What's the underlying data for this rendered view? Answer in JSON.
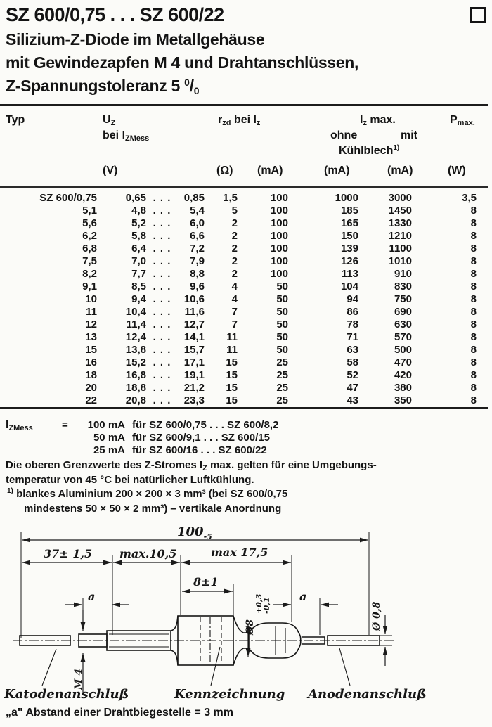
{
  "page": {
    "title": "SZ 600/0,75 . . . SZ 600/22",
    "subtitle_line1": "Silizium-Z-Diode im Metallgehäuse",
    "subtitle_line2": "mit Gewindezapfen M 4 und Drahtanschlüssen,",
    "subtitle_line3_pre": "Z-Spannungstoleranz 5 ",
    "pct_sup": "0",
    "pct_slash": "/",
    "pct_sub": "0"
  },
  "table": {
    "header": {
      "typ": "Typ",
      "uz_base": "U",
      "uz_sub": "Z",
      "uz_bei": "bei I",
      "uz_bei_sub": "ZMess",
      "rzd_base": "r",
      "rzd_sub": "zd",
      "rzd_bei": " bei I",
      "rzd_bei_sub": "z",
      "izmax_base": "I",
      "izmax_sub": "z",
      "izmax_rest": " max.",
      "ohne": "ohne",
      "mit": "mit",
      "kuehlblech": "Kühlblech",
      "kuehlblech_sup": "1)",
      "pmax_base": "P",
      "pmax_sub": "max.",
      "unit_v": "(V)",
      "unit_ohm": "(Ω)",
      "unit_ma1": "(mA)",
      "unit_ma2": "(mA)",
      "unit_ma3": "(mA)",
      "unit_w": "(W)"
    },
    "rows": [
      {
        "typ": "SZ 600/0,75",
        "min": "0,65",
        "dots": ". . .",
        "max": "0,85",
        "rzd": "1,5",
        "iz": "100",
        "ohne": "1000",
        "mit": "3000",
        "p": "3,5"
      },
      {
        "typ": "5,1",
        "min": "4,8",
        "dots": ". . .",
        "max": "5,4",
        "rzd": "5",
        "iz": "100",
        "ohne": "185",
        "mit": "1450",
        "p": "8"
      },
      {
        "typ": "5,6",
        "min": "5,2",
        "dots": ". . .",
        "max": "6,0",
        "rzd": "2",
        "iz": "100",
        "ohne": "165",
        "mit": "1330",
        "p": "8"
      },
      {
        "typ": "6,2",
        "min": "5,8",
        "dots": ". . .",
        "max": "6,6",
        "rzd": "2",
        "iz": "100",
        "ohne": "150",
        "mit": "1210",
        "p": "8"
      },
      {
        "typ": "6,8",
        "min": "6,4",
        "dots": ". . .",
        "max": "7,2",
        "rzd": "2",
        "iz": "100",
        "ohne": "139",
        "mit": "1100",
        "p": "8"
      },
      {
        "typ": "7,5",
        "min": "7,0",
        "dots": ". . .",
        "max": "7,9",
        "rzd": "2",
        "iz": "100",
        "ohne": "126",
        "mit": "1010",
        "p": "8"
      },
      {
        "typ": "8,2",
        "min": "7,7",
        "dots": ". . .",
        "max": "8,8",
        "rzd": "2",
        "iz": "100",
        "ohne": "113",
        "mit": "910",
        "p": "8"
      },
      {
        "typ": "9,1",
        "min": "8,5",
        "dots": ". . .",
        "max": "9,6",
        "rzd": "4",
        "iz": "50",
        "ohne": "104",
        "mit": "830",
        "p": "8"
      },
      {
        "typ": "10",
        "min": "9,4",
        "dots": ". . .",
        "max": "10,6",
        "rzd": "4",
        "iz": "50",
        "ohne": "94",
        "mit": "750",
        "p": "8"
      },
      {
        "typ": "11",
        "min": "10,4",
        "dots": ". . .",
        "max": "11,6",
        "rzd": "7",
        "iz": "50",
        "ohne": "86",
        "mit": "690",
        "p": "8"
      },
      {
        "typ": "12",
        "min": "11,4",
        "dots": ". . .",
        "max": "12,7",
        "rzd": "7",
        "iz": "50",
        "ohne": "78",
        "mit": "630",
        "p": "8"
      },
      {
        "typ": "13",
        "min": "12,4",
        "dots": ". . .",
        "max": "14,1",
        "rzd": "11",
        "iz": "50",
        "ohne": "71",
        "mit": "570",
        "p": "8"
      },
      {
        "typ": "15",
        "min": "13,8",
        "dots": ". . .",
        "max": "15,7",
        "rzd": "11",
        "iz": "50",
        "ohne": "63",
        "mit": "500",
        "p": "8"
      },
      {
        "typ": "16",
        "min": "15,2",
        "dots": ". . .",
        "max": "17,1",
        "rzd": "15",
        "iz": "25",
        "ohne": "58",
        "mit": "470",
        "p": "8"
      },
      {
        "typ": "18",
        "min": "16,8",
        "dots": ". . .",
        "max": "19,1",
        "rzd": "15",
        "iz": "25",
        "ohne": "52",
        "mit": "420",
        "p": "8"
      },
      {
        "typ": "20",
        "min": "18,8",
        "dots": ". . .",
        "max": "21,2",
        "rzd": "15",
        "iz": "25",
        "ohne": "47",
        "mit": "380",
        "p": "8"
      },
      {
        "typ": "22",
        "min": "20,8",
        "dots": ". . .",
        "max": "23,3",
        "rzd": "15",
        "iz": "25",
        "ohne": "43",
        "mit": "350",
        "p": "8"
      }
    ]
  },
  "notes": {
    "izmess_base": "I",
    "izmess_sub": "ZMess",
    "equals": "=",
    "lines": [
      {
        "amount": "100 mA",
        "rest": "für SZ 600/0,75 . . . SZ 600/8,2"
      },
      {
        "amount": "50 mA",
        "rest": "für SZ 600/9,1  . . . SZ 600/15"
      },
      {
        "amount": "25 mA",
        "rest": "für SZ 600/16  . . . SZ 600/22"
      }
    ],
    "grenz_pre": "Die oberen Grenzwerte des Z-Stromes I",
    "grenz_sub": "Z",
    "grenz_post": " max. gelten für eine Umgebungs-",
    "grenz_line2": "temperatur von 45 °C bei natürlicher Luftkühlung.",
    "fn_sup": "1)",
    "fn_line1": " blankes Aluminium 200 × 200 × 3 mm³  (bei SZ 600/0,75",
    "fn_line2": "mindestens 50 × 50 × 2 mm³)  –  vertikale Anordnung"
  },
  "drawing": {
    "dim_overall_main": "100",
    "dim_overall_tol": "-5",
    "dim_lead": "37± 1,5",
    "dim_stud": "max.10,5",
    "dim_cap": "max 17,5",
    "dim_mark": "8±1",
    "bend_left": "a",
    "bend_right": "a",
    "thread": "M 4",
    "dia_body": "Ø8",
    "dia_body_tol_plus": "+0,3",
    "dia_body_tol_minus": "-0,1",
    "dia_wire": "Ø 0,8",
    "label_cathode": "Katodenanschluß",
    "label_marking": "Kennzeichnung",
    "label_anode": "Anodenanschluß",
    "bottom_note": "„a\" Abstand einer Drahtbiegestelle = 3 mm"
  }
}
